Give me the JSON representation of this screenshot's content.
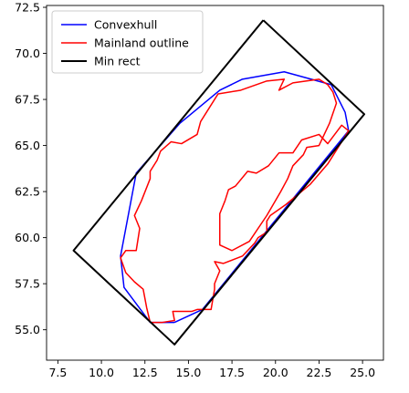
{
  "chart_data": {
    "type": "line",
    "title": "",
    "xlabel": "",
    "ylabel": "",
    "xlim": [
      6.85,
      26.2
    ],
    "ylim": [
      53.35,
      72.6
    ],
    "xticks": [
      7.5,
      10.0,
      12.5,
      15.0,
      17.5,
      20.0,
      22.5,
      25.0
    ],
    "xtick_labels": [
      "7.5",
      "10.0",
      "12.5",
      "15.0",
      "17.5",
      "20.0",
      "22.5",
      "25.0"
    ],
    "yticks": [
      55.0,
      57.5,
      60.0,
      62.5,
      65.0,
      67.5,
      70.0,
      72.5
    ],
    "ytick_labels": [
      "55.0",
      "57.5",
      "60.0",
      "62.5",
      "65.0",
      "67.5",
      "70.0",
      "72.5"
    ],
    "grid": false,
    "legend_position": "top-left",
    "series": [
      {
        "name": "Convexhull",
        "color": "#0000ff",
        "linewidth": 1.5,
        "x": [
          14.2,
          15.8,
          24.2,
          24.0,
          23.2,
          20.5,
          18.1,
          16.8,
          14.5,
          12.0,
          11.1,
          11.3,
          12.8,
          14.2
        ],
        "y": [
          55.4,
          56.1,
          65.8,
          66.8,
          68.3,
          69.0,
          68.6,
          68.0,
          66.2,
          63.5,
          59.0,
          57.3,
          55.4,
          55.4
        ]
      },
      {
        "name": "Mainland outline",
        "color": "#ff0000",
        "linewidth": 1.5,
        "x": [
          12.8,
          13.5,
          14.2,
          14.1,
          15.2,
          15.5,
          16.3,
          16.5,
          16.5,
          16.8,
          16.5,
          17.0,
          18.1,
          18.8,
          19.0,
          19.5,
          19.5,
          19.7,
          20.6,
          22.0,
          23.0,
          24.2,
          23.8,
          23.0,
          22.5,
          21.5,
          21.0,
          20.2,
          19.6,
          18.9,
          18.4,
          17.7,
          17.3,
          17.1,
          16.8,
          16.8,
          17.5,
          18.5,
          19.5,
          20.3,
          20.7,
          21.0,
          21.6,
          21.8,
          22.5,
          23.1,
          23.5,
          23.3,
          23.0,
          22.5,
          21.0,
          20.2,
          20.5,
          19.5,
          18.0,
          16.7,
          16.1,
          15.7,
          15.5,
          14.6,
          14.0,
          13.4,
          13.2,
          12.8,
          12.8,
          12.3,
          11.9,
          12.2,
          12.1,
          12.0,
          11.4,
          11.1,
          11.4,
          11.9,
          12.4,
          12.6,
          12.8
        ],
        "y": [
          55.4,
          55.4,
          55.5,
          56.0,
          56.0,
          56.1,
          56.1,
          57.2,
          57.5,
          58.2,
          58.7,
          58.6,
          59.0,
          59.7,
          60.0,
          60.3,
          60.9,
          61.2,
          61.8,
          62.9,
          64.0,
          65.8,
          66.1,
          65.1,
          65.6,
          65.3,
          64.6,
          64.6,
          63.9,
          63.5,
          63.6,
          62.8,
          62.6,
          62.0,
          61.3,
          59.6,
          59.3,
          59.8,
          61.2,
          62.5,
          63.2,
          63.9,
          64.5,
          64.9,
          65.0,
          66.2,
          67.3,
          67.9,
          68.3,
          68.6,
          68.4,
          68.0,
          68.6,
          68.5,
          68.0,
          67.8,
          66.9,
          66.3,
          65.6,
          65.1,
          65.2,
          64.7,
          64.2,
          63.6,
          63.2,
          62.0,
          61.2,
          60.5,
          59.9,
          59.3,
          59.3,
          58.9,
          58.1,
          57.6,
          57.2,
          56.2,
          55.4
        ]
      },
      {
        "name": "Min rect",
        "color": "#000000",
        "linewidth": 2,
        "x": [
          19.3,
          25.1,
          14.2,
          8.4,
          19.3
        ],
        "y": [
          71.8,
          66.7,
          54.2,
          59.3,
          71.8
        ]
      }
    ]
  }
}
